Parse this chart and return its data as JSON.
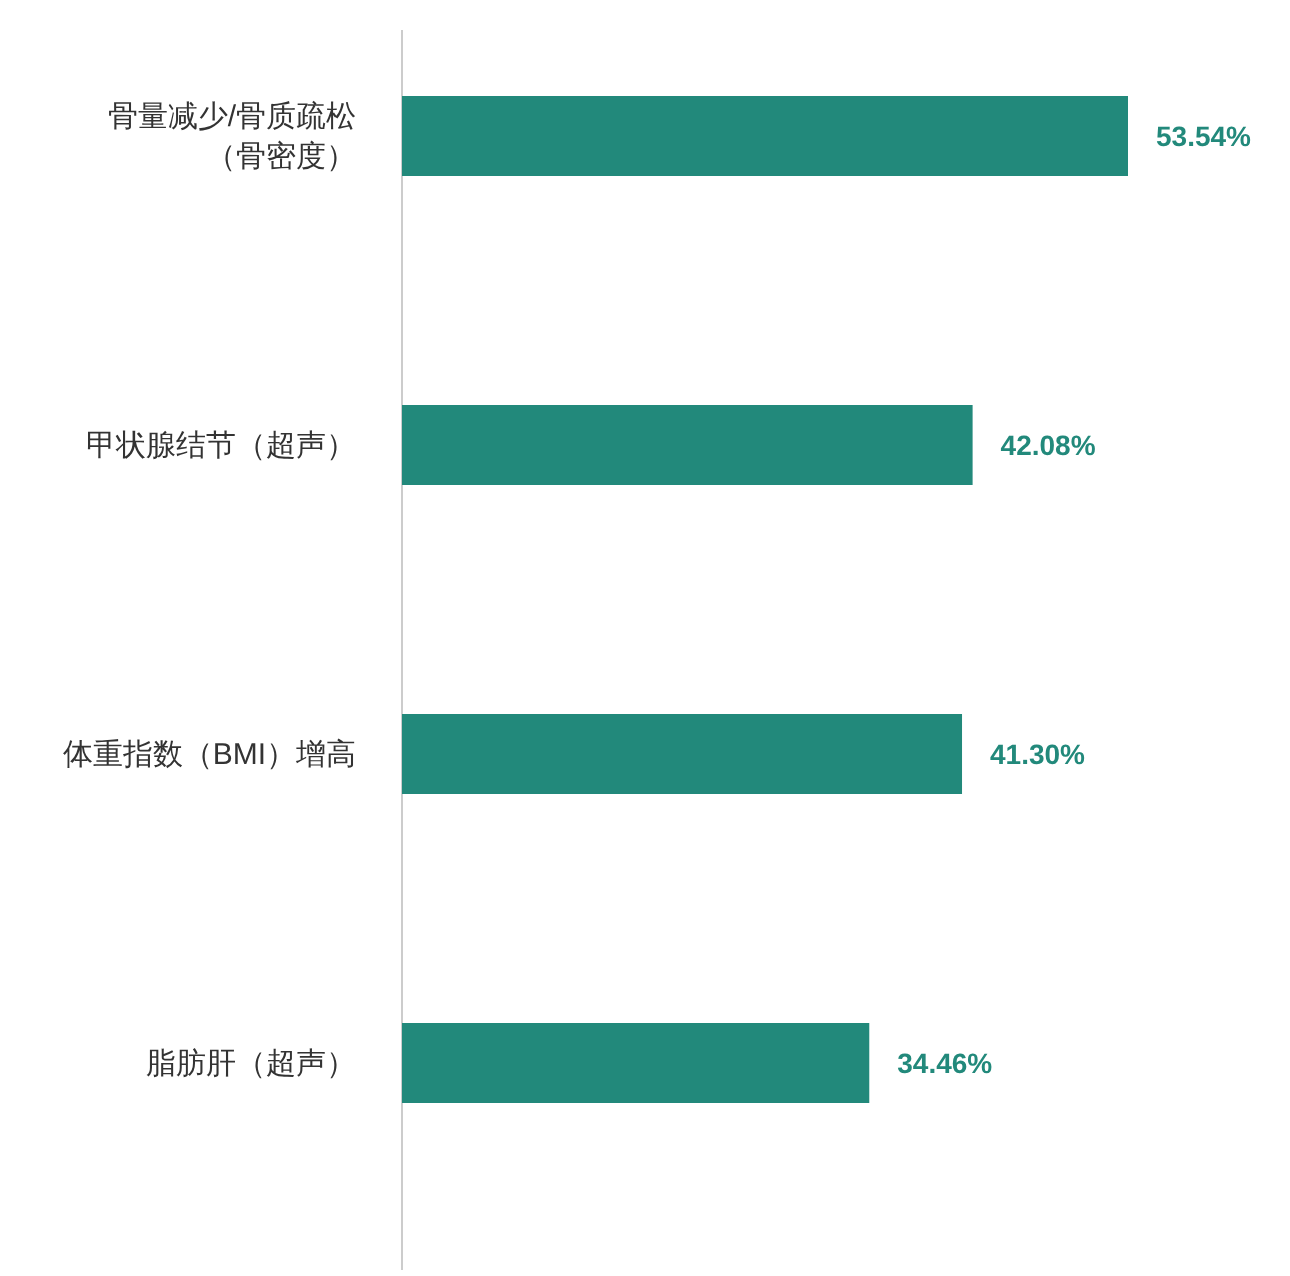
{
  "chart_data": {
    "type": "bar",
    "orientation": "horizontal",
    "categories": [
      "骨量减少/骨质疏松（骨密度）",
      "甲状腺结节（超声）",
      "体重指数（BMI）增高",
      "脂肪肝（超声）"
    ],
    "values": [
      53.54,
      42.08,
      41.3,
      34.46
    ],
    "value_labels": [
      "53.54%",
      "42.08%",
      "41.30%",
      "34.46%"
    ],
    "color": "#22897b"
  }
}
